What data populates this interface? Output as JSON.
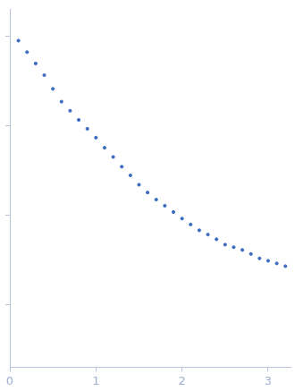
{
  "chart_data": {
    "type": "scatter",
    "color": "#3b6cc0",
    "marker": "circle",
    "log": "y",
    "grid": false,
    "tick_labels": "x",
    "x": [
      0.1,
      0.2,
      0.3,
      0.4,
      0.5,
      0.6,
      0.7,
      0.8,
      0.9,
      1.0,
      1.1,
      1.2,
      1.3,
      1.4,
      1.5,
      1.6,
      1.7,
      1.8,
      1.9,
      2.0,
      2.1,
      2.2,
      2.3,
      2.4,
      2.5,
      2.6,
      2.7,
      2.8,
      2.9,
      3.0,
      3.1,
      3.2
    ],
    "values": [
      9.0,
      6.7,
      5.0,
      3.7,
      2.6,
      1.87,
      1.48,
      1.17,
      0.93,
      0.74,
      0.57,
      0.45,
      0.35,
      0.28,
      0.22,
      0.18,
      0.15,
      0.128,
      0.109,
      0.092,
      0.079,
      0.068,
      0.061,
      0.054,
      0.047,
      0.044,
      0.041,
      0.037,
      0.033,
      0.031,
      0.029,
      0.027
    ],
    "xlim": [
      0,
      3.26
    ],
    "xticks": [
      0,
      1,
      2,
      3
    ],
    "ylim": [
      0.002,
      20
    ],
    "yticks": [
      0.01,
      0.1,
      1,
      10
    ]
  }
}
